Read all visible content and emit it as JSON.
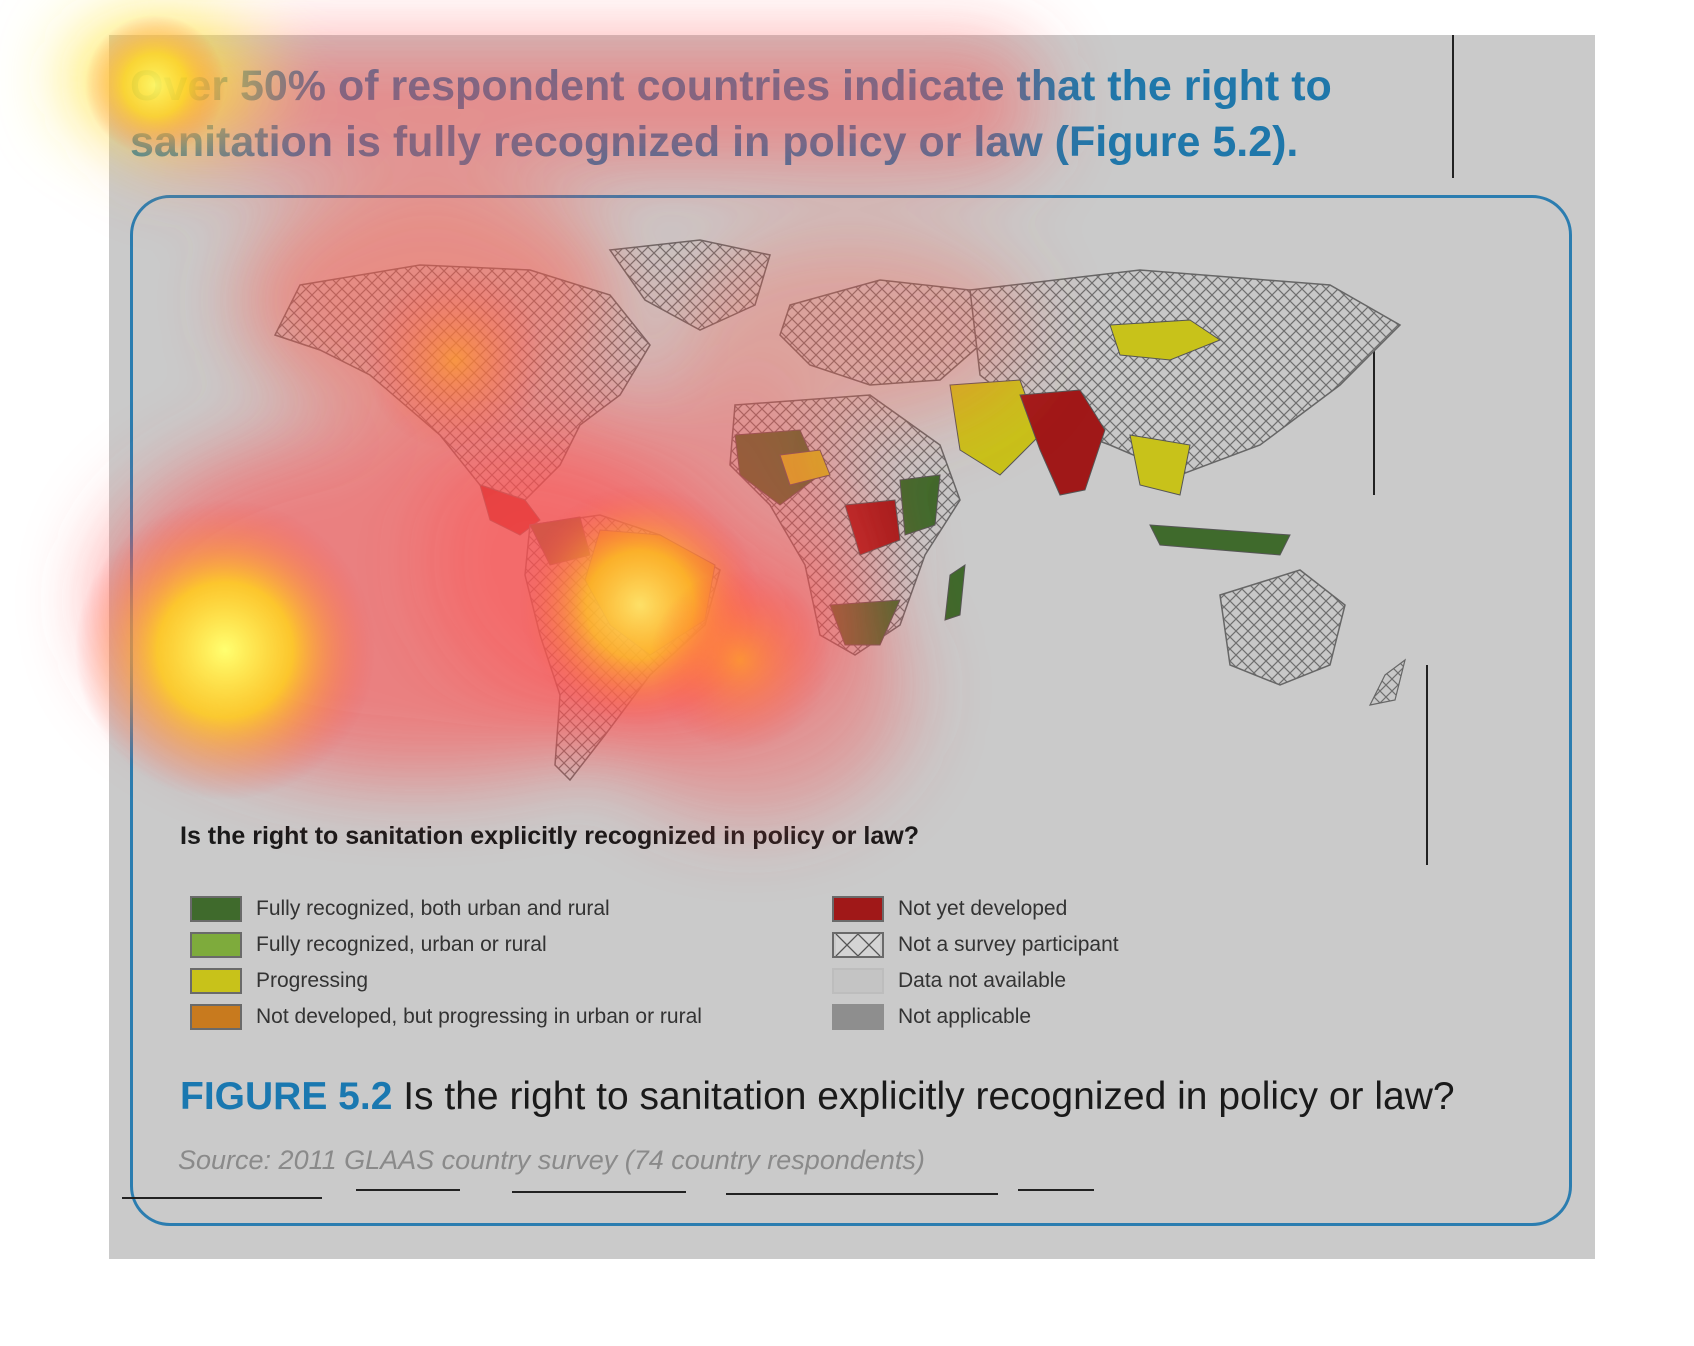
{
  "headline": "Over 50% of respondent countries indicate that the right to sanitation is fully recognized in policy or law (Figure 5.2).",
  "legend": {
    "title": "Is the right to sanitation explicitly recognized in policy or law?",
    "left": [
      {
        "label": "Fully recognized, both urban and rural",
        "color": "#3f6a2c"
      },
      {
        "label": "Fully recognized, urban or rural",
        "color": "#7eab3c"
      },
      {
        "label": "Progressing",
        "color": "#c8c21a"
      },
      {
        "label": "Not developed, but progressing in urban or rural",
        "color": "#c87a1e"
      }
    ],
    "right": [
      {
        "label": "Not yet developed",
        "color": "#a01818"
      },
      {
        "label": "Not a survey participant",
        "color": "hatch"
      },
      {
        "label": "Data not available",
        "color": "#c4c4c4"
      },
      {
        "label": "Not applicable",
        "color": "#8e8e8e"
      }
    ]
  },
  "caption": {
    "figure_number": "FIGURE 5.2",
    "text": " Is the right to sanitation explicitly recognized in policy or law?"
  },
  "source": "Source: 2011 GLAAS country survey (74 country respondents)",
  "colors": {
    "accent_blue": "#1a78b0",
    "panel_gray": "#cacaca",
    "fully_both": "#3f6a2c",
    "fully_one": "#7eab3c",
    "progressing": "#c8c21a",
    "not_developed_progressing": "#c87a1e",
    "not_yet_developed": "#a01818"
  }
}
